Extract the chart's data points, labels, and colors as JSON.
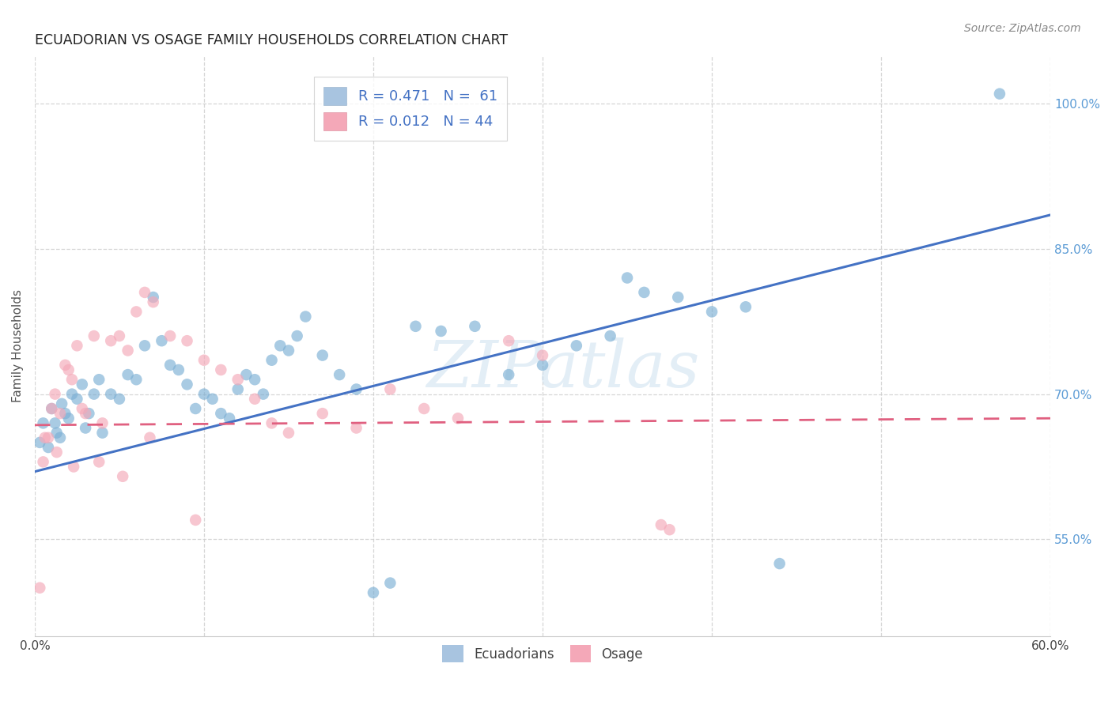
{
  "title": "ECUADORIAN VS OSAGE FAMILY HOUSEHOLDS CORRELATION CHART",
  "source": "Source: ZipAtlas.com",
  "ylabel": "Family Households",
  "ytick_labels": [
    "55.0%",
    "70.0%",
    "85.0%",
    "100.0%"
  ],
  "ytick_values": [
    55.0,
    70.0,
    85.0,
    100.0
  ],
  "xlim": [
    0.0,
    60.0
  ],
  "ylim": [
    45.0,
    105.0
  ],
  "legend_entries": [
    {
      "label": "R = 0.471   N =  61",
      "color": "#a8c4e0"
    },
    {
      "label": "R = 0.012   N = 44",
      "color": "#f4a8b8"
    }
  ],
  "legend_labels_bottom": [
    "Ecuadorians",
    "Osage"
  ],
  "blue_line_x": [
    0.0,
    60.0
  ],
  "blue_line_y": [
    62.0,
    88.5
  ],
  "pink_line_x": [
    0.0,
    60.0
  ],
  "pink_line_y": [
    66.8,
    67.5
  ],
  "watermark": "ZIPatlas",
  "title_color": "#222222",
  "blue_dot_color": "#7bafd4",
  "pink_dot_color": "#f4a8b8",
  "blue_scatter_x": [
    0.3,
    0.5,
    0.8,
    1.0,
    1.2,
    1.3,
    1.5,
    1.6,
    1.8,
    2.0,
    2.2,
    2.5,
    2.8,
    3.0,
    3.2,
    3.5,
    3.8,
    4.0,
    4.5,
    5.0,
    5.5,
    6.0,
    6.5,
    7.0,
    7.5,
    8.0,
    8.5,
    9.0,
    9.5,
    10.0,
    10.5,
    11.0,
    11.5,
    12.0,
    12.5,
    13.0,
    13.5,
    14.0,
    14.5,
    15.0,
    15.5,
    16.0,
    17.0,
    18.0,
    19.0,
    20.0,
    21.0,
    22.5,
    24.0,
    26.0,
    28.0,
    30.0,
    32.0,
    34.0,
    36.0,
    38.0,
    40.0,
    42.0,
    44.0,
    57.0,
    35.0
  ],
  "blue_scatter_y": [
    65.0,
    67.0,
    64.5,
    68.5,
    67.0,
    66.0,
    65.5,
    69.0,
    68.0,
    67.5,
    70.0,
    69.5,
    71.0,
    66.5,
    68.0,
    70.0,
    71.5,
    66.0,
    70.0,
    69.5,
    72.0,
    71.5,
    75.0,
    80.0,
    75.5,
    73.0,
    72.5,
    71.0,
    68.5,
    70.0,
    69.5,
    68.0,
    67.5,
    70.5,
    72.0,
    71.5,
    70.0,
    73.5,
    75.0,
    74.5,
    76.0,
    78.0,
    74.0,
    72.0,
    70.5,
    49.5,
    50.5,
    77.0,
    76.5,
    77.0,
    72.0,
    73.0,
    75.0,
    76.0,
    80.5,
    80.0,
    78.5,
    79.0,
    52.5,
    101.0,
    82.0
  ],
  "pink_scatter_x": [
    0.3,
    0.5,
    0.8,
    1.0,
    1.2,
    1.5,
    1.8,
    2.0,
    2.2,
    2.5,
    2.8,
    3.0,
    3.5,
    4.0,
    4.5,
    5.0,
    5.5,
    6.0,
    6.5,
    7.0,
    8.0,
    9.0,
    10.0,
    11.0,
    12.0,
    13.0,
    14.0,
    15.0,
    17.0,
    19.0,
    21.0,
    23.0,
    25.0,
    28.0,
    30.0,
    37.0,
    37.5,
    0.6,
    1.3,
    2.3,
    3.8,
    5.2,
    6.8,
    9.5
  ],
  "pink_scatter_y": [
    50.0,
    63.0,
    65.5,
    68.5,
    70.0,
    68.0,
    73.0,
    72.5,
    71.5,
    75.0,
    68.5,
    68.0,
    76.0,
    67.0,
    75.5,
    76.0,
    74.5,
    78.5,
    80.5,
    79.5,
    76.0,
    75.5,
    73.5,
    72.5,
    71.5,
    69.5,
    67.0,
    66.0,
    68.0,
    66.5,
    70.5,
    68.5,
    67.5,
    75.5,
    74.0,
    56.5,
    56.0,
    65.5,
    64.0,
    62.5,
    63.0,
    61.5,
    65.5,
    57.0
  ]
}
